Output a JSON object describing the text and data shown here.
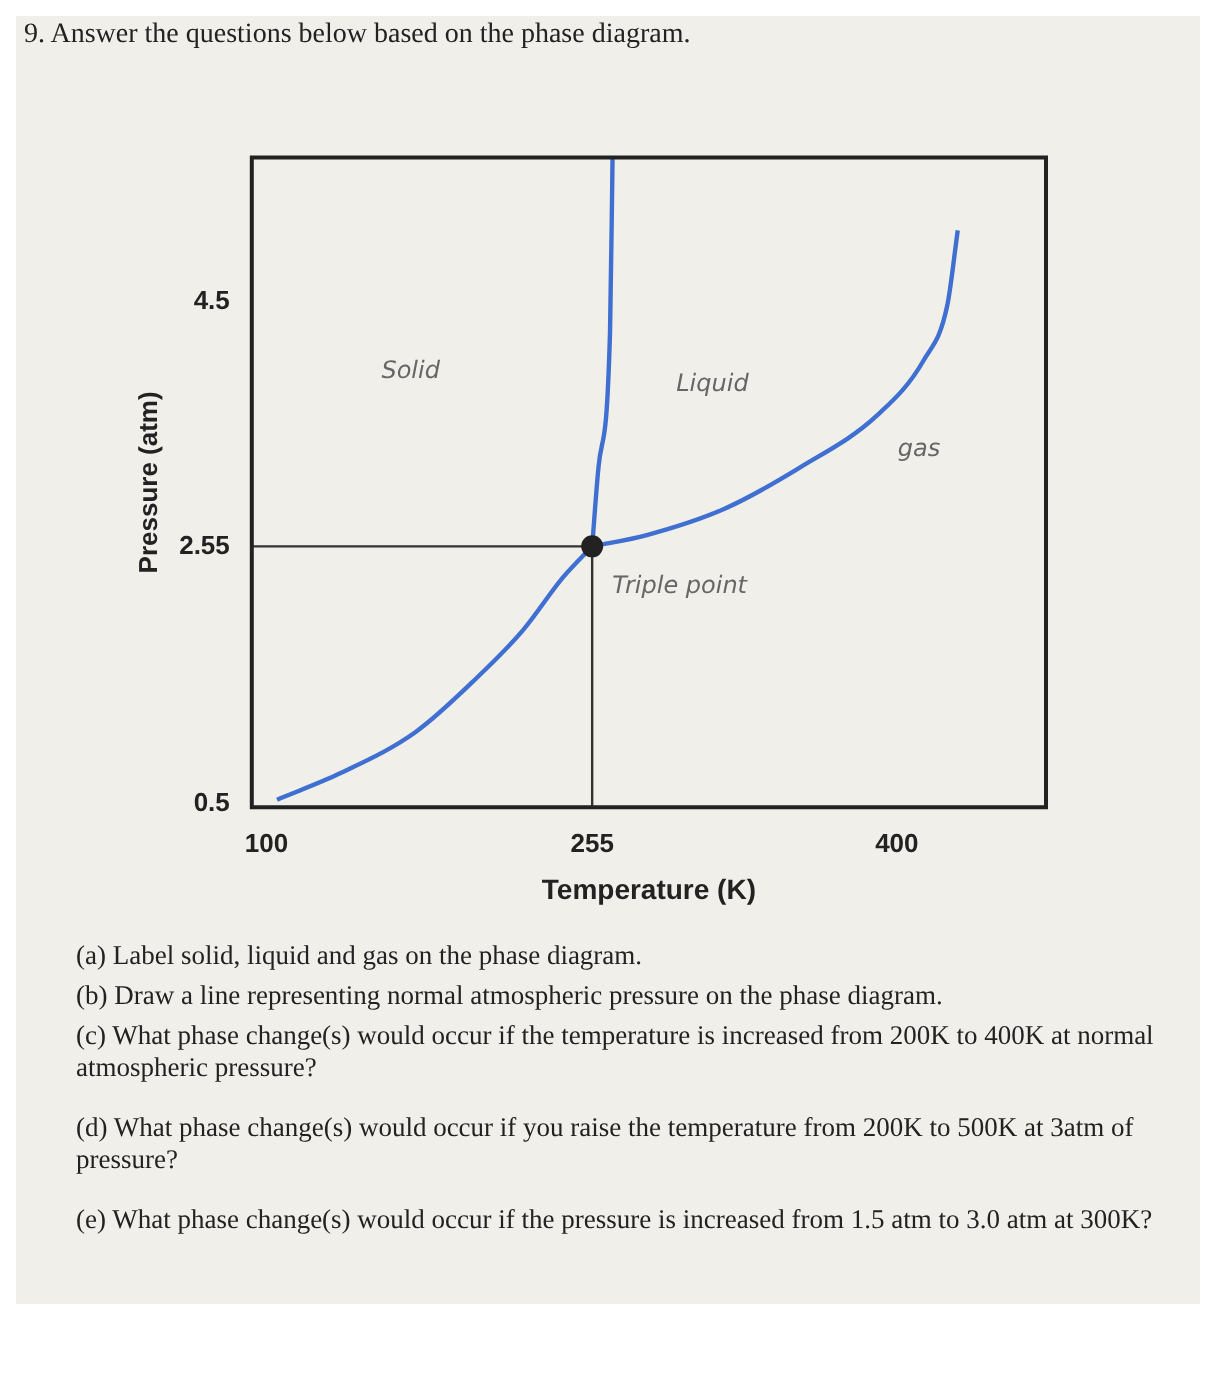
{
  "chart_data": {
    "type": "line",
    "title": "9. Answer the questions below based on the phase diagram.",
    "xlabel": "Temperature (K)",
    "ylabel": "Pressure (atm)",
    "xlim": [
      93,
      471
    ],
    "ylim": [
      0.47,
      5.65
    ],
    "xticks": [
      100,
      255,
      400
    ],
    "yticks": [
      0.5,
      2.55,
      4.5
    ],
    "grid": false,
    "legend": false,
    "marker": "none",
    "line_style": "solid",
    "series": [
      {
        "type": "line",
        "color": "#3f6fd0",
        "x": [
          105,
          135,
          171,
          200,
          222,
          241,
          255
        ],
        "values": [
          0.53,
          0.74,
          1.07,
          1.5,
          1.88,
          2.3,
          2.55
        ]
      },
      {
        "type": "line",
        "color": "#3f6fd0",
        "x": [
          255,
          281,
          318,
          354,
          391,
          413,
          424,
          429
        ],
        "values": [
          2.55,
          2.64,
          2.85,
          3.18,
          3.6,
          4.04,
          4.47,
          5.07
        ]
      },
      {
        "type": "line",
        "color": "#3f6fd0",
        "x": [
          255,
          258,
          263.5,
          264.7
        ],
        "values": [
          2.55,
          3.18,
          4.26,
          5.65
        ]
      },
      {
        "type": "line",
        "color": "#333333",
        "x": [
          93,
          255
        ],
        "values": [
          2.55,
          2.55
        ]
      },
      {
        "type": "line",
        "color": "#333333",
        "x": [
          255,
          255
        ],
        "values": [
          0.47,
          2.55
        ]
      },
      {
        "type": "scatter",
        "color": "#222222",
        "marker": "circle",
        "x": [
          255
        ],
        "values": [
          2.55
        ]
      }
    ],
    "annotations": [
      "Solid",
      "Liquid",
      "gas",
      {
        "text": "Triple point",
        "x": 255,
        "y": 2.55
      },
      "(a) Label solid, liquid and gas on the phase diagram.",
      "(b) Draw a line representing normal atmospheric pressure on the phase diagram.",
      "(c) What phase change(s) would occur if the temperature is increased from 200K to 400K at normal atmospheric pressure?",
      "(d) What phase change(s) would occur if you raise the temperature from 200K to 500K at 3atm of pressure?",
      "(e) What phase change(s) would occur if the pressure is increased from 1.5 atm to 3.0 atm at 300K?"
    ]
  }
}
